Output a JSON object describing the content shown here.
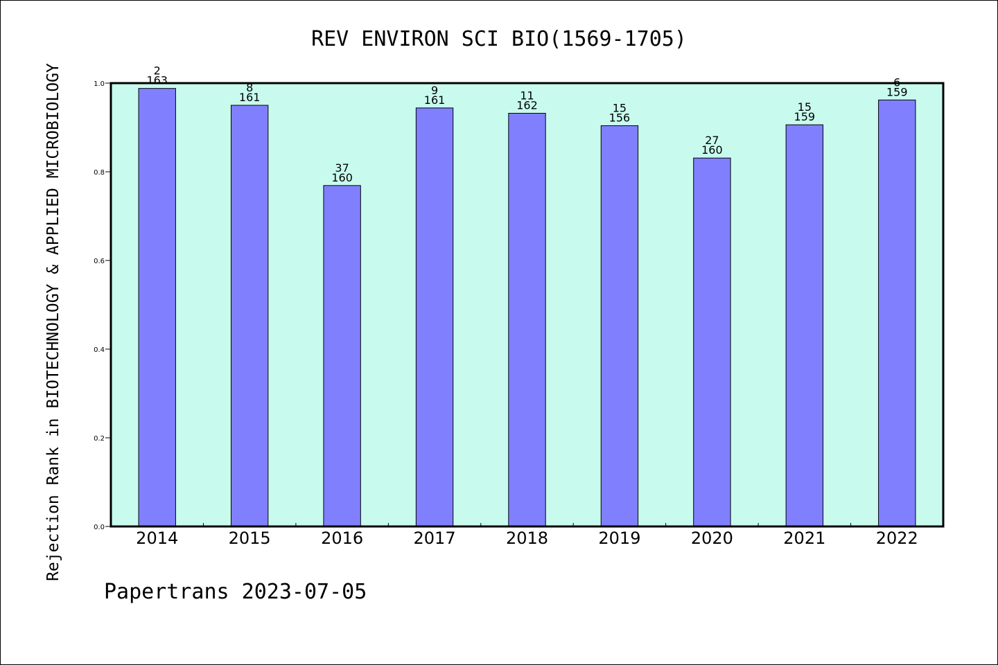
{
  "footer": "Papertrans 2023-07-05",
  "colors": {
    "plot_background": "#c8fbee",
    "bar_fill": "#8080ff",
    "bar_stroke": "#000000",
    "axis": "#000000"
  },
  "chart_data": {
    "type": "bar",
    "title": "REV ENVIRON SCI BIO(1569-1705)",
    "xlabel": "",
    "ylabel": "Rejection Rank in BIOTECHNOLOGY & APPLIED MICROBIOLOGY",
    "ylim": [
      0.0,
      1.0
    ],
    "yticks": [
      "0.0",
      "0.2",
      "0.4",
      "0.6",
      "0.8",
      "1.0"
    ],
    "grid": false,
    "legend": "none",
    "categories": [
      "2014",
      "2015",
      "2016",
      "2017",
      "2018",
      "2019",
      "2020",
      "2021",
      "2022"
    ],
    "values": [
      0.988,
      0.95,
      0.769,
      0.944,
      0.932,
      0.904,
      0.831,
      0.906,
      0.962
    ],
    "rank_labels": [
      "2",
      "8",
      "37",
      "9",
      "11",
      "15",
      "27",
      "15",
      "6"
    ],
    "total_labels": [
      "163",
      "161",
      "160",
      "161",
      "162",
      "156",
      "160",
      "159",
      "159"
    ]
  }
}
